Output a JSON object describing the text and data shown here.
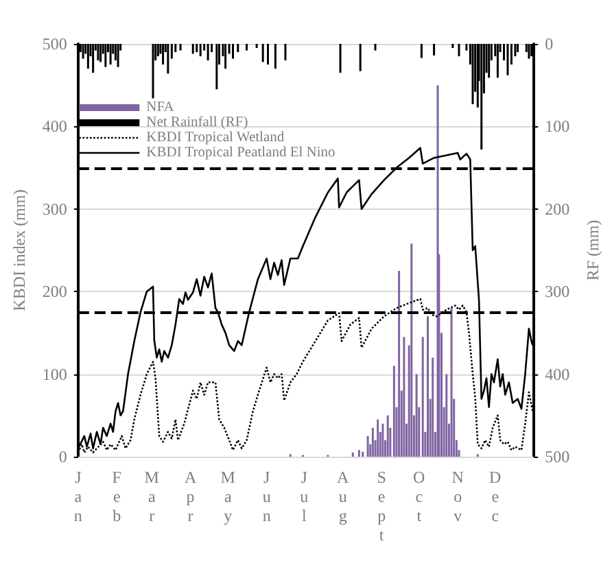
{
  "chart_data": {
    "type": "line",
    "ylabel": "KBDI index (mm)",
    "y2label": "RF (mm)",
    "xlim": [
      "--01-01",
      "--12-31"
    ],
    "xticks": [
      {
        "value": "--01-01",
        "label": "Jan"
      },
      {
        "value": "--02-01",
        "label": "Feb"
      },
      {
        "value": "--03-01",
        "label": "Mar"
      },
      {
        "value": "--04-01",
        "label": "Apr"
      },
      {
        "value": "--05-01",
        "label": "May"
      },
      {
        "value": "--06-01",
        "label": "Jun"
      },
      {
        "value": "--07-01",
        "label": "Jul"
      },
      {
        "value": "--08-01",
        "label": "Aug"
      },
      {
        "value": "--09-01",
        "label": "Sept"
      },
      {
        "value": "--10-01",
        "label": "Oct"
      },
      {
        "value": "--11-01",
        "label": "Nov"
      },
      {
        "value": "--12-01",
        "label": "Dec"
      }
    ],
    "ylim": [
      0,
      500
    ],
    "yticks": [
      0,
      100,
      200,
      300,
      400,
      500
    ],
    "y2lim": [
      500,
      0
    ],
    "y2ticks": [
      0,
      100,
      200,
      300,
      400,
      500
    ],
    "grid": "y",
    "legend": "top left",
    "marker": "none",
    "ref_lines": [
      {
        "axis": "y",
        "value": 350,
        "color": "#000000",
        "line_style": "dashed"
      },
      {
        "axis": "y",
        "value": 175,
        "color": "#000000",
        "line_style": "dashed"
      }
    ],
    "series": [
      {
        "name": "NFA",
        "type": "bar",
        "color": "#8064a2",
        "x": [
          "--06-20",
          "--06-30",
          "--07-20",
          "--08-09",
          "--08-14",
          "--08-17",
          "--08-21",
          "--08-23",
          "--08-25",
          "--08-27",
          "--08-29",
          "--08-31",
          "--09-02",
          "--09-04",
          "--09-06",
          "--09-08",
          "--09-11",
          "--09-13",
          "--09-15",
          "--09-17",
          "--09-19",
          "--09-21",
          "--09-23",
          "--09-25",
          "--09-27",
          "--09-29",
          "--10-01",
          "--10-04",
          "--10-06",
          "--10-08",
          "--10-10",
          "--10-12",
          "--10-14",
          "--10-16",
          "--10-17",
          "--10-19",
          "--10-21",
          "--10-23",
          "--10-25",
          "--10-27",
          "--10-29",
          "--10-31",
          "--11-02",
          "--11-17"
        ],
        "values": [
          3,
          2,
          2,
          5,
          8,
          6,
          25,
          15,
          35,
          20,
          45,
          30,
          40,
          20,
          50,
          35,
          110,
          60,
          225,
          80,
          145,
          40,
          135,
          258,
          50,
          100,
          60,
          145,
          30,
          170,
          70,
          120,
          30,
          450,
          245,
          150,
          60,
          100,
          40,
          180,
          70,
          20,
          8,
          3
        ]
      },
      {
        "name": "Net Rainfall (RF)",
        "type": "bar",
        "axis": "y2",
        "color": "#000000",
        "x": [
          "--01-03",
          "--01-05",
          "--01-07",
          "--01-09",
          "--01-11",
          "--01-13",
          "--01-15",
          "--01-17",
          "--01-19",
          "--01-21",
          "--01-23",
          "--01-25",
          "--01-27",
          "--01-29",
          "--01-31",
          "--02-02",
          "--02-04",
          "--03-02",
          "--03-04",
          "--03-06",
          "--03-08",
          "--03-10",
          "--03-12",
          "--03-14",
          "--03-17",
          "--03-20",
          "--03-24",
          "--04-03",
          "--04-06",
          "--04-09",
          "--04-12",
          "--04-15",
          "--04-18",
          "--04-22",
          "--04-24",
          "--04-27",
          "--04-29",
          "--05-02",
          "--05-05",
          "--05-09",
          "--05-16",
          "--05-24",
          "--05-29",
          "--06-02",
          "--06-08",
          "--06-16",
          "--07-30",
          "--08-15",
          "--08-27",
          "--10-03",
          "--10-13",
          "--10-28",
          "--11-02",
          "--11-08",
          "--11-11",
          "--11-13",
          "--11-15",
          "--11-17",
          "--11-18",
          "--11-20",
          "--11-22",
          "--11-24",
          "--11-26",
          "--11-28",
          "--12-01",
          "--12-03",
          "--12-05",
          "--12-08",
          "--12-11",
          "--12-14",
          "--12-17",
          "--12-19",
          "--12-26",
          "--12-28",
          "--12-30"
        ],
        "values": [
          10,
          18,
          12,
          30,
          15,
          35,
          8,
          20,
          22,
          12,
          28,
          10,
          25,
          12,
          20,
          28,
          8,
          66,
          20,
          15,
          12,
          25,
          10,
          36,
          18,
          10,
          8,
          12,
          10,
          15,
          8,
          20,
          10,
          55,
          25,
          15,
          30,
          12,
          18,
          10,
          8,
          5,
          22,
          25,
          30,
          20,
          35,
          33,
          8,
          17,
          14,
          5,
          15,
          8,
          25,
          73,
          58,
          77,
          45,
          128,
          60,
          35,
          41,
          20,
          15,
          41,
          10,
          20,
          38,
          25,
          15,
          10,
          10,
          18,
          15
        ]
      },
      {
        "name": "KBDI Tropical Wetland",
        "line_style": "dotted",
        "color": "#000000",
        "x": [
          "--01-01",
          "--01-04",
          "--01-06",
          "--01-09",
          "--01-13",
          "--01-16",
          "--01-21",
          "--01-24",
          "--01-27",
          "--01-31",
          "--02-05",
          "--02-08",
          "--02-12",
          "--02-15",
          "--02-20",
          "--02-25",
          "--03-02",
          "--03-04",
          "--03-07",
          "--03-10",
          "--03-14",
          "--03-17",
          "--03-20",
          "--03-22",
          "--03-27",
          "--04-03",
          "--04-06",
          "--04-09",
          "--04-12",
          "--04-15",
          "--04-21",
          "--04-24",
          "--04-28",
          "--05-02",
          "--05-05",
          "--05-09",
          "--05-12",
          "--05-16",
          "--05-21",
          "--05-26",
          "--06-01",
          "--06-04",
          "--06-07",
          "--06-10",
          "--06-13",
          "--06-15",
          "--06-20",
          "--06-25",
          "--06-30",
          "--07-10",
          "--07-20",
          "--07-29",
          "--07-31",
          "--08-07",
          "--08-14",
          "--08-16",
          "--08-24",
          "--09-03",
          "--09-13",
          "--09-23",
          "--10-02",
          "--10-04",
          "--10-08",
          "--10-11",
          "--10-15",
          "--10-23",
          "--10-30",
          "--11-02",
          "--11-05",
          "--11-08",
          "--11-10",
          "--11-13",
          "--11-15",
          "--11-17",
          "--11-20",
          "--11-23",
          "--11-26",
          "--11-29",
          "--12-03",
          "--12-05",
          "--12-08",
          "--12-11",
          "--12-14",
          "--12-17",
          "--12-22",
          "--12-25",
          "--12-28",
          "--12-31"
        ],
        "values": [
          5,
          15,
          5,
          12,
          5,
          10,
          18,
          8,
          15,
          8,
          25,
          10,
          20,
          45,
          75,
          100,
          115,
          95,
          25,
          18,
          30,
          22,
          45,
          20,
          40,
          80,
          70,
          90,
          75,
          90,
          90,
          45,
          35,
          20,
          8,
          20,
          10,
          20,
          55,
          80,
          108,
          90,
          100,
          95,
          100,
          68,
          90,
          100,
          115,
          140,
          165,
          174,
          140,
          160,
          168,
          132,
          155,
          170,
          180,
          186,
          191,
          178,
          180,
          172,
          170,
          178,
          183,
          178,
          183,
          175,
          150,
          100,
          71,
          15,
          10,
          20,
          12,
          35,
          50,
          20,
          15,
          18,
          8,
          12,
          8,
          40,
          78,
          55
        ]
      },
      {
        "name": "KBDI Tropical Peatland El Nino",
        "line_style": "solid",
        "color": "#000000",
        "x": [
          "--01-01",
          "--01-06",
          "--01-08",
          "--01-11",
          "--01-13",
          "--01-16",
          "--01-19",
          "--01-21",
          "--01-24",
          "--01-27",
          "--01-29",
          "--01-31",
          "--02-02",
          "--02-04",
          "--02-06",
          "--02-10",
          "--02-15",
          "--02-20",
          "--02-25",
          "--03-02",
          "--03-03",
          "--03-05",
          "--03-07",
          "--03-09",
          "--03-11",
          "--03-14",
          "--03-17",
          "--03-20",
          "--03-23",
          "--03-26",
          "--03-28",
          "--03-30",
          "--04-03",
          "--04-06",
          "--04-09",
          "--04-12",
          "--04-15",
          "--04-18",
          "--04-21",
          "--04-23",
          "--04-26",
          "--04-29",
          "--05-02",
          "--05-06",
          "--05-09",
          "--05-12",
          "--05-18",
          "--05-25",
          "--06-01",
          "--06-04",
          "--06-07",
          "--06-10",
          "--06-13",
          "--06-15",
          "--06-20",
          "--06-26",
          "--06-30",
          "--07-10",
          "--07-20",
          "--07-28",
          "--07-29",
          "--08-04",
          "--08-14",
          "--08-16",
          "--08-24",
          "--09-03",
          "--09-13",
          "--09-23",
          "--10-02",
          "--10-04",
          "--10-13",
          "--10-23",
          "--11-01",
          "--11-03",
          "--11-08",
          "--11-11",
          "--11-13",
          "--11-15",
          "--11-18",
          "--11-20",
          "--11-22",
          "--11-24",
          "--11-26",
          "--11-28",
          "--11-30",
          "--12-03",
          "--12-05",
          "--12-07",
          "--12-09",
          "--12-12",
          "--12-15",
          "--12-19",
          "--12-22",
          "--12-25",
          "--12-28",
          "--12-30",
          "--12-31"
        ],
        "values": [
          10,
          25,
          12,
          28,
          10,
          30,
          15,
          35,
          25,
          40,
          30,
          55,
          65,
          50,
          55,
          100,
          140,
          175,
          200,
          206,
          141,
          120,
          130,
          115,
          128,
          120,
          135,
          160,
          191,
          185,
          199,
          190,
          199,
          215,
          195,
          218,
          205,
          222,
          180,
          175,
          160,
          150,
          135,
          128,
          140,
          135,
          175,
          215,
          240,
          215,
          235,
          220,
          238,
          208,
          240,
          240,
          255,
          290,
          320,
          337,
          302,
          320,
          335,
          300,
          318,
          335,
          350,
          362,
          374,
          355,
          362,
          365,
          368,
          360,
          367,
          360,
          250,
          255,
          190,
          70,
          80,
          95,
          60,
          100,
          90,
          118,
          85,
          100,
          75,
          90,
          65,
          70,
          58,
          100,
          155,
          140,
          135
        ]
      }
    ]
  }
}
